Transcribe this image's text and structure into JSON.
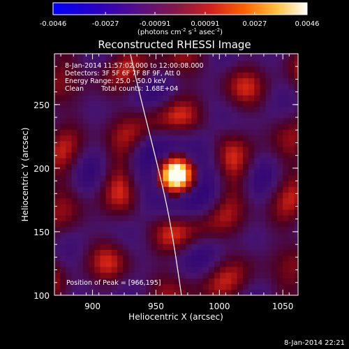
{
  "colorbar": {
    "ticks": [
      "-0.0046",
      "-0.0027",
      "-0.00091",
      "0.00091",
      "0.0027",
      "0.0046"
    ],
    "unit_label": "(photons cm",
    "unit_sup1": "-2",
    "unit_mid": " s",
    "unit_sup2": "-1",
    "unit_mid2": " asec",
    "unit_sup3": "-2",
    "unit_end": ")",
    "colors": [
      "#0000ff",
      "#3a00b0",
      "#5a1090",
      "#902040",
      "#d02020",
      "#ff6000",
      "#ffb020",
      "#ffff80",
      "#ffffff"
    ]
  },
  "plot": {
    "title": "Reconstructed RHESSI Image",
    "time_range": "8-Jan-2014 11:57:02.000 to 12:00:08.000",
    "detectors": "Detectors: 3F 5F 6F 7F 8F 9F, Att 0",
    "energy": "Energy Range: 25.0 - 50.0 keV",
    "algorithm": "Clean",
    "counts": "Total counts: 1.68E+04",
    "peak": "Position of Peak = [966,195]"
  },
  "footer": {
    "timestamp": "8-Jan-2014 22:21"
  },
  "chart_data": {
    "type": "heatmap",
    "title": "Reconstructed RHESSI Image",
    "xlabel": "Heliocentric X (arcsec)",
    "ylabel": "Heliocentric Y (arcsec)",
    "xlim": [
      870,
      1062
    ],
    "ylim": [
      100,
      290
    ],
    "x_ticks": [
      900,
      950,
      1000,
      1050
    ],
    "y_ticks": [
      100,
      150,
      200,
      250
    ],
    "x_tick_labels": [
      "900",
      "950",
      "1000",
      "1050"
    ],
    "y_tick_labels": [
      "100",
      "150",
      "200",
      "250"
    ],
    "peak": [
      966,
      195
    ],
    "colorbar_range": [
      -0.0046,
      0.0046
    ]
  }
}
